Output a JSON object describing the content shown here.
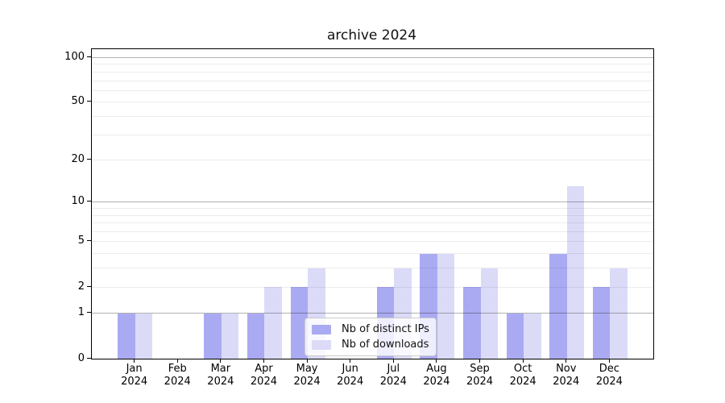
{
  "title": "archive 2024",
  "chart_data": {
    "type": "bar",
    "title": "archive 2024",
    "categories": [
      "Jan 2024",
      "Feb 2024",
      "Mar 2024",
      "Apr 2024",
      "May 2024",
      "Jun 2024",
      "Jul 2024",
      "Aug 2024",
      "Sep 2024",
      "Oct 2024",
      "Nov 2024",
      "Dec 2024"
    ],
    "series": [
      {
        "name": "Nb of distinct IPs",
        "color": "#aaaaf2",
        "values": [
          1,
          0,
          1,
          1,
          2,
          0,
          2,
          4,
          2,
          1,
          4,
          2
        ]
      },
      {
        "name": "Nb of downloads",
        "color": "#dbdbf8",
        "values": [
          1,
          0,
          1,
          2,
          3,
          0,
          3,
          4,
          3,
          1,
          13,
          3
        ]
      }
    ],
    "yscale": "log1p",
    "ylim": [
      0,
      114
    ],
    "y_tick_values": [
      0,
      1,
      2,
      5,
      10,
      20,
      50,
      100
    ],
    "y_tick_labels": [
      "0",
      "1",
      "2",
      "5",
      "10",
      "20",
      "50",
      "100"
    ],
    "grid": true,
    "grid_major_values": [
      1,
      10,
      100
    ],
    "grid_minor_values": [
      2,
      3,
      4,
      5,
      6,
      7,
      8,
      9,
      20,
      30,
      40,
      50,
      60,
      70,
      80,
      90
    ],
    "legend_position": "lower center",
    "xlabel": "",
    "ylabel": ""
  },
  "legend": {
    "items": [
      {
        "label": "Nb of distinct IPs",
        "color": "#aaaaf2"
      },
      {
        "label": "Nb of downloads",
        "color": "#dbdbf8"
      }
    ]
  },
  "colors": {
    "frame": "#000000",
    "grid_major": "#b5b5b5",
    "grid_minor": "#ebebeb",
    "background": "#ffffff"
  }
}
